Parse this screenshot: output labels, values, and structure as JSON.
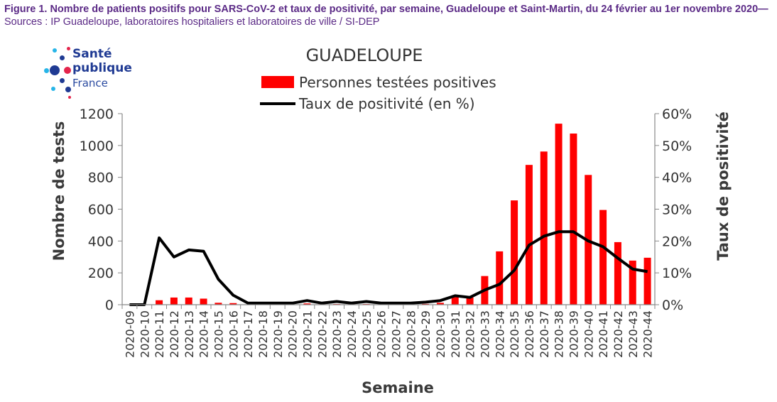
{
  "caption": {
    "bold": "Figure 1. Nombre de patients positifs pour SARS-CoV-2 et taux de positivité, par semaine, Guadeloupe et Saint-Martin, du 24 février au 1er novembre 2020—",
    "normal": "Sources : IP Guadeloupe, laboratoires hospitaliers et laboratoires de ville / SI-DEP"
  },
  "logo": {
    "line1": "Santé",
    "line2": "publique",
    "line3": "France"
  },
  "colors": {
    "bars": "#ff0000",
    "line": "#000000",
    "caption": "#5b2a86",
    "logo": "#1f3a93"
  },
  "chart_data": {
    "type": "bar+line",
    "title": "GUADELOUPE",
    "xlabel": "Semaine",
    "ylabel": "Nombre de tests",
    "y2label": "Taux de positivité",
    "ylim": [
      0,
      1200
    ],
    "y2lim": [
      0,
      60
    ],
    "yticks": [
      "0",
      "200",
      "400",
      "600",
      "800",
      "1000",
      "1200"
    ],
    "y2ticks": [
      "0%",
      "10%",
      "20%",
      "30%",
      "40%",
      "50%",
      "60%"
    ],
    "legend": [
      "Personnes testées positives",
      "Taux de positivité (en %)"
    ],
    "categories": [
      "2020-09",
      "2020-10",
      "2020-11",
      "2020-12",
      "2020-13",
      "2020-14",
      "2020-15",
      "2020-16",
      "2020-17",
      "2020-18",
      "2020-19",
      "2020-20",
      "2020-21",
      "2020-22",
      "2020-23",
      "2020-24",
      "2020-25",
      "2020-26",
      "2020-27",
      "2020-28",
      "2020-29",
      "2020-30",
      "2020-31",
      "2020-32",
      "2020-33",
      "2020-34",
      "2020-35",
      "2020-36",
      "2020-37",
      "2020-38",
      "2020-39",
      "2020-40",
      "2020-41",
      "2020-42",
      "2020-43",
      "2020-44"
    ],
    "series": [
      {
        "name": "Personnes testées positives",
        "axis": "left",
        "values": [
          0,
          0,
          28,
          45,
          45,
          38,
          12,
          10,
          2,
          2,
          2,
          2,
          8,
          3,
          4,
          3,
          4,
          2,
          2,
          2,
          5,
          12,
          50,
          45,
          180,
          335,
          655,
          878,
          962,
          1137,
          1075,
          815,
          595,
          393,
          277,
          295
        ]
      },
      {
        "name": "Taux de positivité (en %)",
        "axis": "right",
        "values": [
          0,
          0,
          21,
          15,
          17.2,
          16.8,
          8,
          3,
          0.5,
          0.5,
          0.5,
          0.5,
          1.3,
          0.5,
          1,
          0.5,
          1,
          0.5,
          0.5,
          0.5,
          0.8,
          1.3,
          2.8,
          2.3,
          4.6,
          6.4,
          10.8,
          18.7,
          21.5,
          22.9,
          22.9,
          20,
          18.2,
          14.6,
          11.2,
          10.4
        ]
      }
    ],
    "grid": false,
    "legend_position": "top-center"
  }
}
